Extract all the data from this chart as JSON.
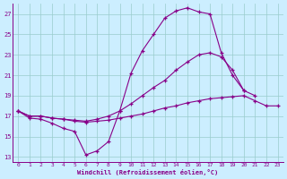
{
  "xlabel": "Windchill (Refroidissement éolien,°C)",
  "bg_color": "#cceeff",
  "line_color": "#880088",
  "grid_color": "#99cccc",
  "xmin": -0.5,
  "xmax": 23.5,
  "ymin": 12.5,
  "ymax": 28.0,
  "yticks": [
    13,
    15,
    17,
    19,
    21,
    23,
    25,
    27
  ],
  "xticks": [
    0,
    1,
    2,
    3,
    4,
    5,
    6,
    7,
    8,
    9,
    10,
    11,
    12,
    13,
    14,
    15,
    16,
    17,
    18,
    19,
    20,
    21,
    22,
    23
  ],
  "line1_x": [
    0,
    1,
    2,
    3,
    4,
    5,
    6,
    7,
    8,
    9,
    10,
    11,
    12,
    13,
    14,
    15,
    16,
    17,
    18,
    19,
    20,
    21,
    22,
    23
  ],
  "line1_y": [
    17.5,
    16.8,
    16.7,
    16.3,
    15.8,
    15.5,
    13.2,
    13.6,
    14.5,
    17.5,
    21.2,
    23.4,
    25.0,
    26.6,
    27.3,
    27.6,
    27.2,
    27.0,
    23.2,
    21.0,
    19.5,
    null,
    null,
    null
  ],
  "line2_x": [
    0,
    1,
    2,
    3,
    4,
    5,
    6,
    7,
    8,
    9,
    10,
    11,
    12,
    13,
    14,
    15,
    16,
    17,
    18,
    19,
    20,
    21,
    22,
    23
  ],
  "line2_y": [
    17.5,
    17.0,
    17.0,
    16.8,
    16.7,
    16.6,
    16.5,
    16.7,
    17.0,
    17.5,
    18.2,
    19.0,
    19.8,
    20.5,
    21.5,
    22.3,
    23.0,
    23.2,
    22.8,
    21.5,
    19.5,
    19.0,
    null,
    null
  ],
  "line3_x": [
    0,
    1,
    2,
    3,
    4,
    5,
    6,
    7,
    8,
    9,
    10,
    11,
    12,
    13,
    14,
    15,
    16,
    17,
    18,
    19,
    20,
    21,
    22,
    23
  ],
  "line3_y": [
    17.5,
    17.0,
    17.0,
    16.8,
    16.7,
    16.5,
    16.4,
    16.5,
    16.6,
    16.8,
    17.0,
    17.2,
    17.5,
    17.8,
    18.0,
    18.3,
    18.5,
    18.7,
    18.8,
    18.9,
    19.0,
    18.5,
    18.0,
    18.0
  ]
}
